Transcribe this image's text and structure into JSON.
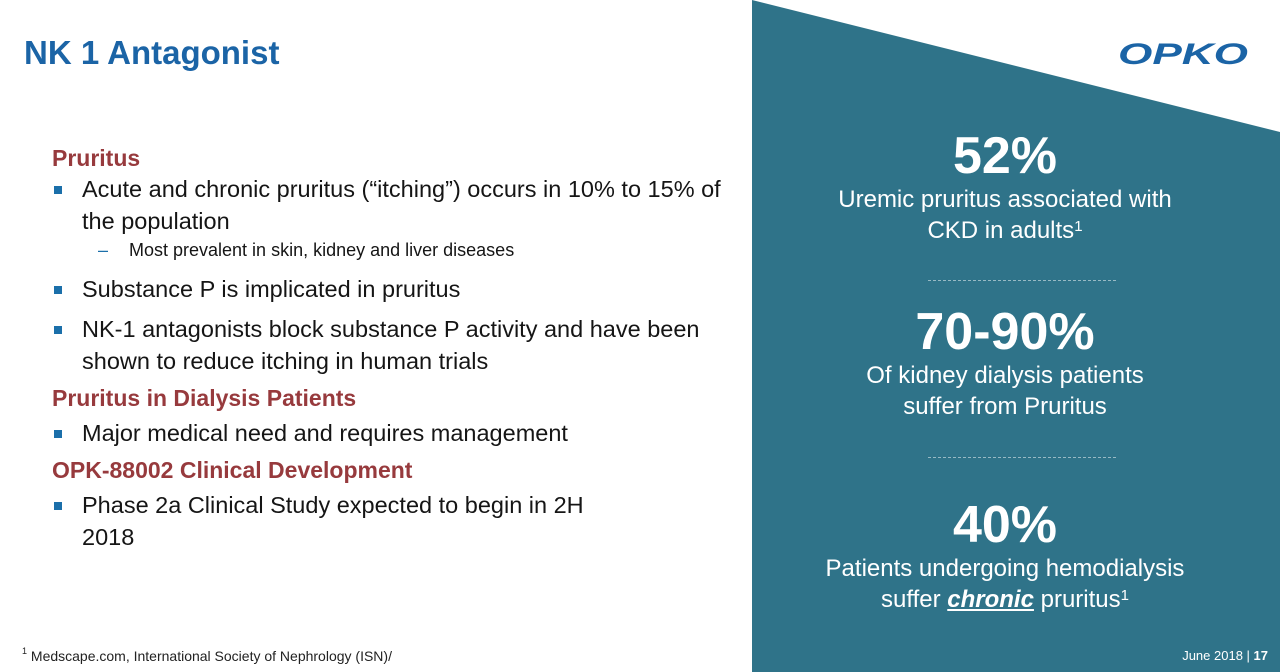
{
  "slide": {
    "title": "NK 1 Antagonist",
    "logo_text": "OPKO",
    "colors": {
      "title_blue": "#1b64a6",
      "heading_red": "#973a3d",
      "panel_teal": "#2f7389"
    }
  },
  "left": {
    "heading_1": "Pruritus",
    "bullet_1": "Acute and chronic pruritus (“itching”) occurs in 10% to 15% of the population",
    "sub_bullet_1": "Most prevalent in skin, kidney and liver diseases",
    "bullet_2": "Substance P is implicated in pruritus",
    "bullet_3": "NK-1 antagonists block substance P activity and have been shown to reduce itching in human trials",
    "heading_2": "Pruritus in Dialysis Patients",
    "bullet_4": "Major medical need and requires management",
    "heading_3": "OPK-88002 Clinical Development",
    "bullet_5": "Phase 2a Clinical Study expected to begin in 2H 2018"
  },
  "stats": {
    "stat_1": {
      "value": "52%",
      "line_1": "Uremic pruritus associated with",
      "line_2": "CKD in adults",
      "ref": "1"
    },
    "stat_2": {
      "value": "70-90%",
      "line_1": "Of  kidney dialysis patients",
      "line_2": "suffer from Pruritus"
    },
    "stat_3": {
      "value": "40%",
      "line_1": "Patients undergoing hemodialysis",
      "line_2a": "suffer ",
      "emphasis": "chronic",
      "line_2b": " pruritus",
      "ref": "1"
    }
  },
  "footer": {
    "footnote_ref": "1",
    "footnote": " Medscape.com, International Society of Nephrology (ISN)/",
    "date": "June 2018 | ",
    "page_number": "17"
  }
}
